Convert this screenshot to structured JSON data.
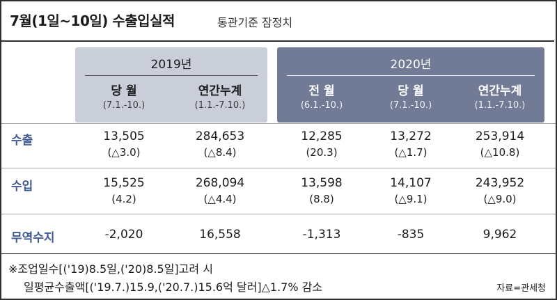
{
  "title": "7월(1일~10일) 수출입실적",
  "subtitle": "통관기준 잠정치",
  "years": {
    "y2019": "2019년",
    "y2020": "2020년"
  },
  "columns": [
    {
      "label": "당 월",
      "period": "(7.1.-10.)"
    },
    {
      "label": "연간누계",
      "period": "(1.1.-7.10.)"
    },
    {
      "label": "전 월",
      "period": "(6.1.-10.)"
    },
    {
      "label": "당 월",
      "period": "(7.1.-10.)"
    },
    {
      "label": "연간누계",
      "period": "(1.1.-7.10.)"
    }
  ],
  "rows": [
    {
      "label": "수출",
      "cells": [
        {
          "value": "13,505",
          "change": "(△3.0)"
        },
        {
          "value": "284,653",
          "change": "(△8.4)"
        },
        {
          "value": "12,285",
          "change": "(20.3)"
        },
        {
          "value": "13,272",
          "change": "(△1.7)"
        },
        {
          "value": "253,914",
          "change": "(△10.8)"
        }
      ]
    },
    {
      "label": "수입",
      "cells": [
        {
          "value": "15,525",
          "change": "(4.2)"
        },
        {
          "value": "268,094",
          "change": "(△4.4)"
        },
        {
          "value": "13,598",
          "change": "(8.8)"
        },
        {
          "value": "14,107",
          "change": "(△9.1)"
        },
        {
          "value": "243,952",
          "change": "(△9.0)"
        }
      ]
    },
    {
      "label": "무역수지",
      "cells": [
        {
          "value": "-2,020"
        },
        {
          "value": "16,558"
        },
        {
          "value": "-1,313"
        },
        {
          "value": "-835"
        },
        {
          "value": "9,962"
        }
      ]
    }
  ],
  "notes": {
    "line1": "※조업일수[('19)8.5일,('20)8.5일]고려 시",
    "line2": "일평균수출액[('19.7.)15.9,('20.7.)15.6억 달러]△1.7% 감소"
  },
  "source": "자료=관세청",
  "colors": {
    "header_2019": "#c9ced9",
    "header_2020": "#727b96",
    "row_label": "#3f5a93"
  }
}
